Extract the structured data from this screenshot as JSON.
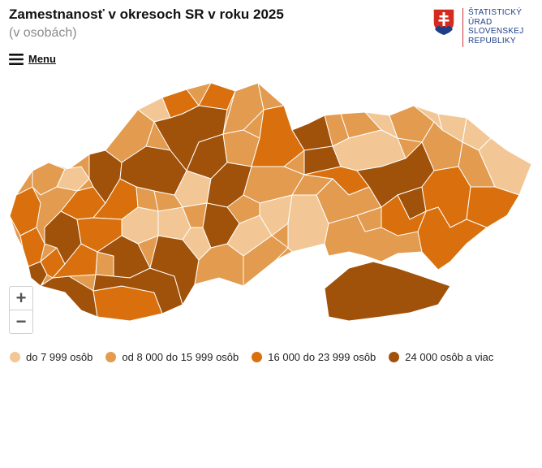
{
  "header": {
    "title": "Zamestnanosť v okresoch SR v roku 2025",
    "subtitle": "(v osobách)"
  },
  "logo": {
    "lines": [
      "ŠTATISTICKÝ",
      "ÚRAD",
      "SLOVENSKEJ",
      "REPUBLIKY"
    ],
    "text_color": "#1d3f87",
    "shield_color": "#d52b1e",
    "shield_border": "#1d3f87"
  },
  "menu": {
    "label": "Menu",
    "icon": "hamburger-icon"
  },
  "zoom": {
    "in_symbol": "+",
    "out_symbol": "−"
  },
  "legend": {
    "items": [
      {
        "label": "do 7 999 osôb",
        "color": "#f2c795"
      },
      {
        "label": "od 8 000 do 15 999 osôb",
        "color": "#e29b4f"
      },
      {
        "label": "16 000 do 23 999 osôb",
        "color": "#d9700d"
      },
      {
        "label": "24 000 osôb a viac",
        "color": "#a0510a"
      }
    ]
  },
  "map": {
    "border_color": "#ffffff",
    "region_count_hint": "districts of Slovakia colored by employment class"
  }
}
